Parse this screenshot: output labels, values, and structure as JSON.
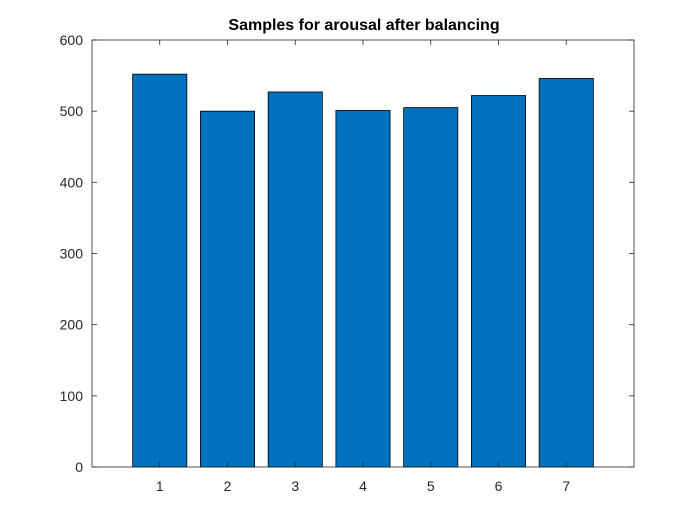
{
  "chart_data": {
    "type": "bar",
    "title": "Samples for arousal after balancing",
    "xlabel": "",
    "ylabel": "",
    "categories": [
      "1",
      "2",
      "3",
      "4",
      "5",
      "6",
      "7"
    ],
    "values": [
      552,
      500,
      527,
      501,
      505,
      522,
      546
    ],
    "ylim": [
      0,
      600
    ],
    "yticks": [
      0,
      100,
      200,
      300,
      400,
      500,
      600
    ],
    "xlim": [
      0,
      8
    ],
    "grid": false,
    "legend": "none",
    "bar_color": "#0072BD",
    "bar_edge_color": "#000000"
  }
}
